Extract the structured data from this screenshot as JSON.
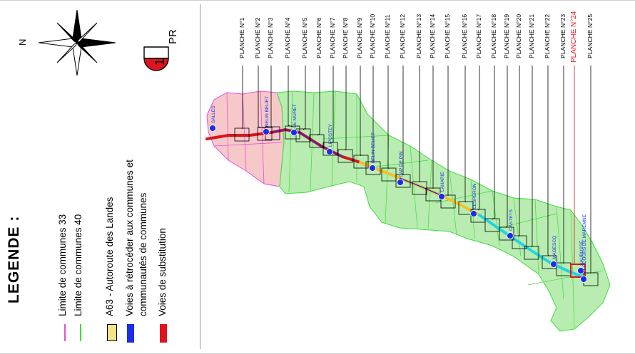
{
  "legend": {
    "title": "LEGENDE :",
    "items": [
      {
        "label": "Limite de communes 33",
        "color": "#e64fdc",
        "kind": "line"
      },
      {
        "label": "Limite de communes 40",
        "color": "#3ddc3d",
        "kind": "line"
      },
      {
        "label": "A63 - Autoroute des Landes",
        "color": "#f5e38a",
        "kind": "box"
      },
      {
        "label": "Voies à rétrocéder aux communes et",
        "label2": "communautés de communes",
        "color": "#1a2ee8",
        "kind": "bar"
      },
      {
        "label": "Voies de substitution",
        "color": "#e0141e",
        "kind": "bar"
      }
    ]
  },
  "north": {
    "letter": "N"
  },
  "pr_marker": {
    "number": "1",
    "label": "PR",
    "color": "#e0141e"
  },
  "planches": [
    "PLANCHE N°1",
    "PLANCHE N°2",
    "PLANCHE N°3",
    "PLANCHE N°4",
    "PLANCHE N°5",
    "PLANCHE N°6",
    "PLANCHE N°7",
    "PLANCHE N°8",
    "PLANCHE N°9",
    "PLANCHE N°10",
    "PLANCHE N°11",
    "PLANCHE N°12",
    "PLANCHE N°13",
    "PLANCHE N°14",
    "PLANCHE N°15",
    "PLANCHE N°16",
    "PLANCHE N°17",
    "PLANCHE N°18",
    "PLANCHE N°19",
    "PLANCHE N°20",
    "PLANCHE N°21",
    "PLANCHE N°22",
    "PLANCHE N°23",
    "PLANCHE N°24",
    "PLANCHE N°25"
  ],
  "highlighted_planche": "PLANCHE N°24",
  "map": {
    "colors": {
      "gironde_fill": "#f7c8c8",
      "landes_fill": "#b8ecb0",
      "commune33_line": "#e64fdc",
      "commune40_line": "#3ddc3d",
      "route_red": "#d8141e",
      "route_yellow": "#f2c12a",
      "route_cyan": "#22d4e0",
      "route_blue": "#1a2ee8"
    },
    "towns": [
      "SALLES",
      "BELIN BELIET",
      "LE MURET",
      "LIPOSTEY",
      "BELIN BELIET",
      "CAP DE PIN",
      "LAHARIE",
      "LESPERON",
      "CASTETS",
      "MAGESCQ",
      "SAUBUSSE",
      "ST GEOURS DE MAREMNE"
    ]
  }
}
